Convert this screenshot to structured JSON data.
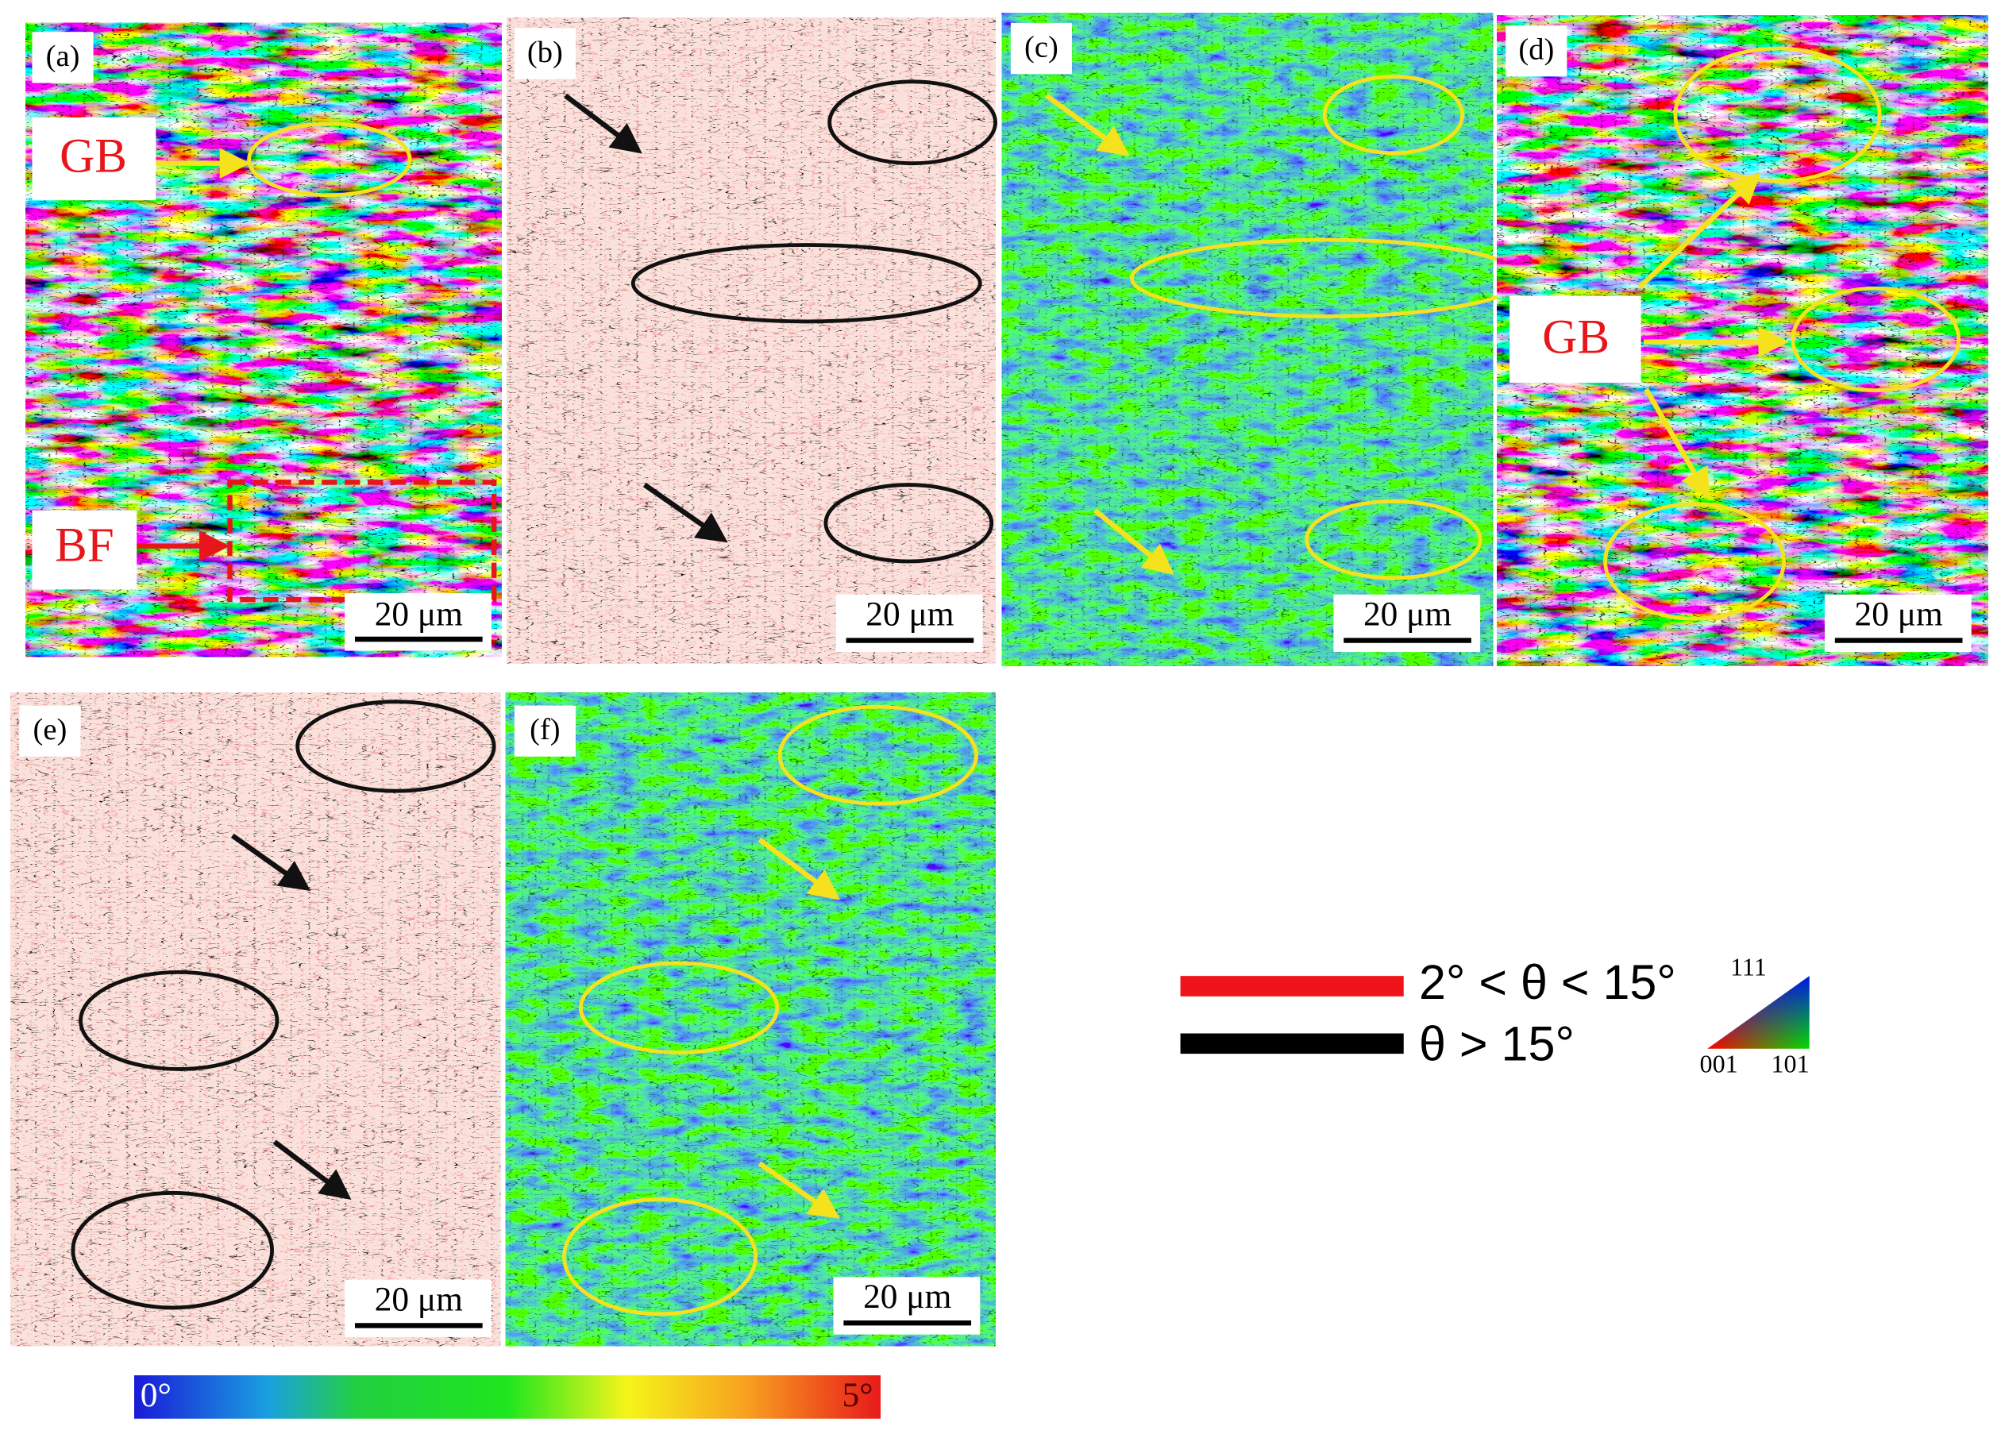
{
  "panels": [
    {
      "label": "(a)",
      "scale_bar": "20 μm",
      "annotations": [
        "GB",
        "BF"
      ]
    },
    {
      "label": "(b)",
      "scale_bar": "20 μm"
    },
    {
      "label": "(c)",
      "scale_bar": "20 μm"
    },
    {
      "label": "(d)",
      "scale_bar": "20 μm",
      "annotations": [
        "GB"
      ]
    },
    {
      "label": "(e)",
      "scale_bar": "20 μm"
    },
    {
      "label": "(f)",
      "scale_bar": "20 μm"
    }
  ],
  "legend": {
    "low_angle": "2° < θ < 15°",
    "high_angle": "θ > 15°"
  },
  "ipf_key": {
    "top": "111",
    "left": "001",
    "right": "101"
  },
  "colorbar": {
    "min": "0°",
    "max": "5°"
  }
}
